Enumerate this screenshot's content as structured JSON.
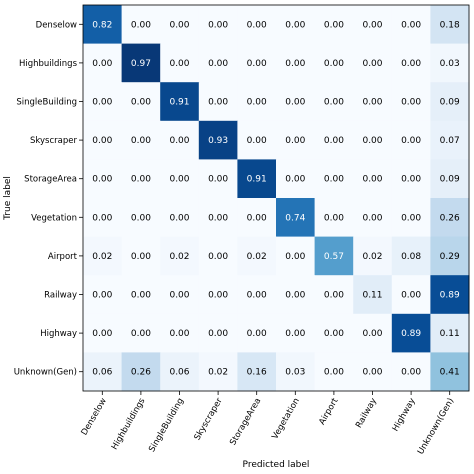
{
  "chart_data": {
    "type": "heatmap",
    "xlabel": "Predicted label",
    "ylabel": "True label",
    "x_categories": [
      "Denselow",
      "Highbuildings",
      "SingleBuilding",
      "Skyscraper",
      "StorageArea",
      "Vegetation",
      "Airport",
      "Railway",
      "Highway",
      "Unknown(Gen)"
    ],
    "y_categories": [
      "Denselow",
      "Highbuildings",
      "SingleBuilding",
      "Skyscraper",
      "StorageArea",
      "Vegetation",
      "Airport",
      "Railway",
      "Highway",
      "Unknown(Gen)"
    ],
    "values": [
      [
        "0.82",
        "0.00",
        "0.00",
        "0.00",
        "0.00",
        "0.00",
        "0.00",
        "0.00",
        "0.00",
        "0.18"
      ],
      [
        "0.00",
        "0.97",
        "0.00",
        "0.00",
        "0.00",
        "0.00",
        "0.00",
        "0.00",
        "0.00",
        "0.03"
      ],
      [
        "0.00",
        "0.00",
        "0.91",
        "0.00",
        "0.00",
        "0.00",
        "0.00",
        "0.00",
        "0.00",
        "0.09"
      ],
      [
        "0.00",
        "0.00",
        "0.00",
        "0.93",
        "0.00",
        "0.00",
        "0.00",
        "0.00",
        "0.00",
        "0.07"
      ],
      [
        "0.00",
        "0.00",
        "0.00",
        "0.00",
        "0.91",
        "0.00",
        "0.00",
        "0.00",
        "0.00",
        "0.09"
      ],
      [
        "0.00",
        "0.00",
        "0.00",
        "0.00",
        "0.00",
        "0.74",
        "0.00",
        "0.00",
        "0.00",
        "0.26"
      ],
      [
        "0.02",
        "0.00",
        "0.02",
        "0.00",
        "0.02",
        "0.00",
        "0.57",
        "0.02",
        "0.08",
        "0.29"
      ],
      [
        "0.00",
        "0.00",
        "0.00",
        "0.00",
        "0.00",
        "0.00",
        "0.00",
        "0.11",
        "0.00",
        "0.89"
      ],
      [
        "0.00",
        "0.00",
        "0.00",
        "0.00",
        "0.00",
        "0.00",
        "0.00",
        "0.00",
        "0.89",
        "0.11"
      ],
      [
        "0.06",
        "0.26",
        "0.06",
        "0.02",
        "0.16",
        "0.03",
        "0.00",
        "0.00",
        "0.00",
        "0.41"
      ]
    ],
    "vmin": 0,
    "vmax": 1,
    "colormap": "Blues",
    "grid": false,
    "legend": "none"
  }
}
